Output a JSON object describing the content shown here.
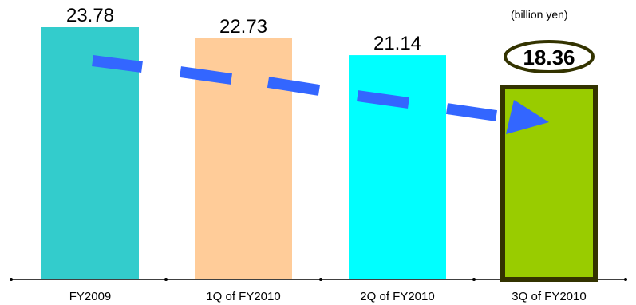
{
  "chart_data": {
    "type": "bar",
    "categories": [
      "FY2009",
      "1Q of FY2010",
      "2Q of FY2010",
      "3Q of FY2010"
    ],
    "values": [
      23.78,
      22.73,
      21.14,
      18.36
    ],
    "value_labels": [
      "23.78",
      "22.73",
      "21.14",
      "18.36"
    ],
    "unit_label": "(billion yen)",
    "colors": [
      "#33cccc",
      "#ffcc99",
      "#00ffff",
      "#99cc00"
    ],
    "highlight_outline_color": "#333300",
    "trend_arrow_color": "#3366ff",
    "title": "",
    "xlabel": "",
    "ylabel": "",
    "ylim": [
      0,
      23.78
    ],
    "grid": false,
    "legend": "none"
  }
}
